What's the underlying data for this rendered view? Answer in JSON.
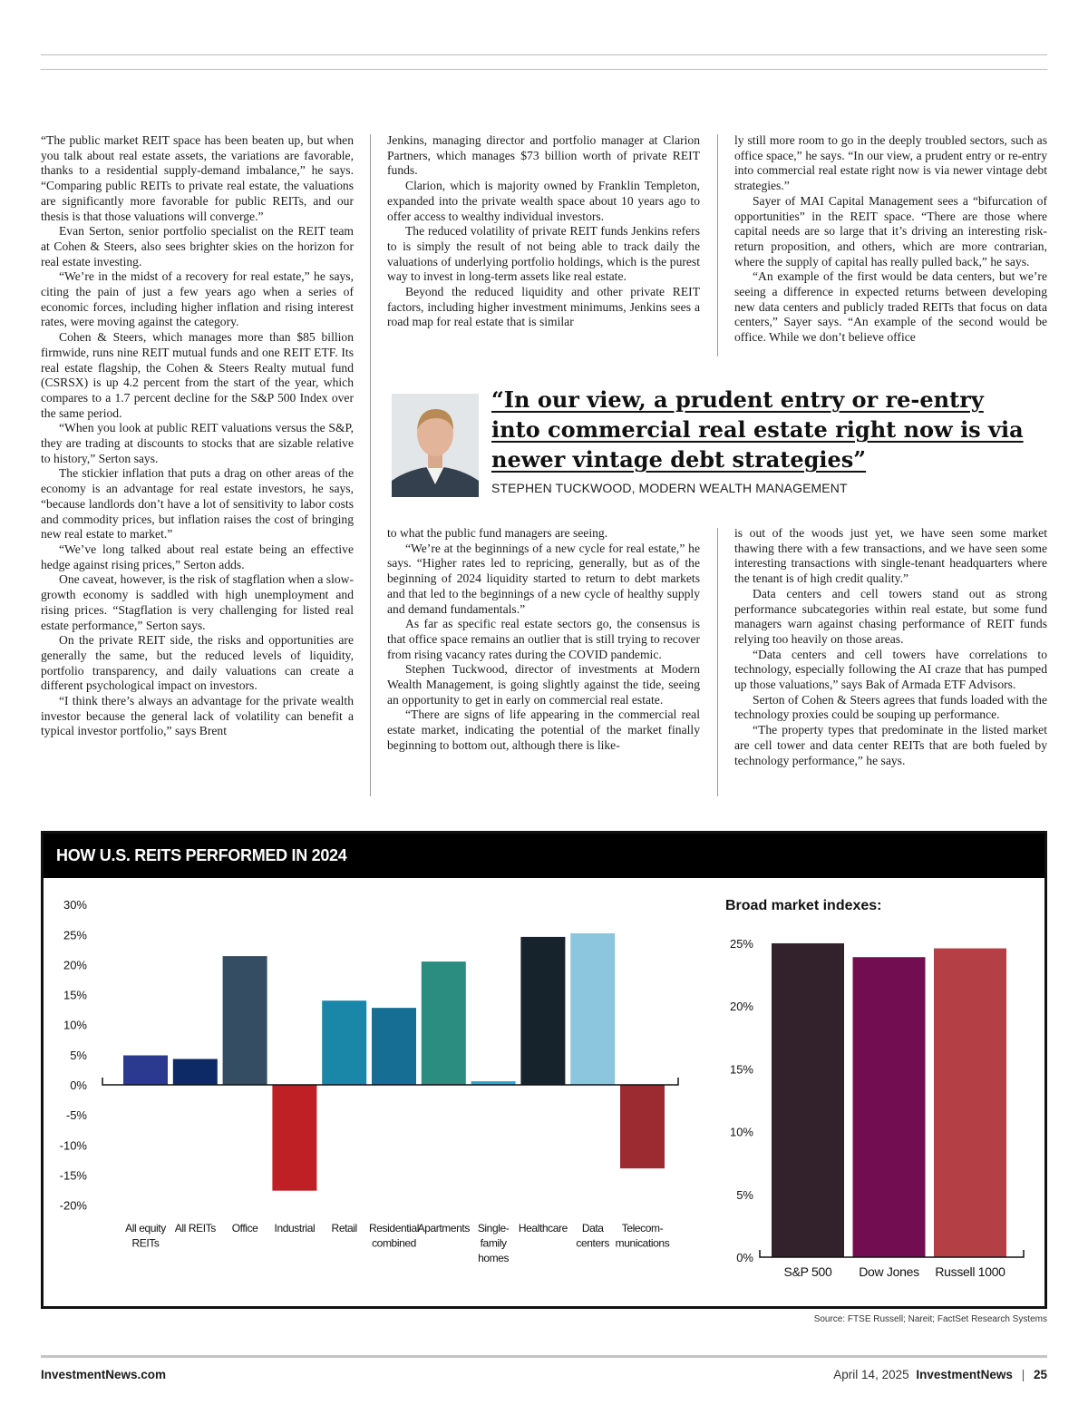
{
  "article": {
    "col1": [
      {
        "cont": true,
        "text": "“The public market REIT space has been beaten up, but when you talk about real estate assets, the variations are favorable, thanks to a residential supply-demand imbalance,” he says. “Comparing public REITs to private real estate, the valuations are significantly more favorable for public REITs, and our thesis is that those valuations will converge.”"
      },
      {
        "text": "Evan Serton, senior portfolio specialist on the REIT team at Cohen & Steers, also sees brighter skies on the horizon for real estate investing."
      },
      {
        "text": "“We’re in the midst of a recovery for real estate,” he says, citing the pain of just a few years ago when a series of economic forces, including higher inflation and rising interest rates, were moving against the category."
      },
      {
        "text": "Cohen & Steers, which manages more than $85 billion firmwide, runs nine REIT mutual funds and one REIT ETF. Its real estate flagship, the Cohen & Steers Realty mutual fund (CSRSX) is up 4.2 percent from the start of the year, which compares to a 1.7 percent decline for the S&P 500 Index over the same period."
      },
      {
        "text": "“When you look at public REIT valuations versus the S&P, they are trading at discounts to stocks that are sizable relative to history,” Serton says."
      },
      {
        "text": "The stickier inflation that puts a drag on other areas of the economy is an advantage for real estate investors, he says, “because landlords don’t have a lot of sensitivity to labor costs and commodity prices, but inflation raises the cost of bringing new real estate to market.”"
      },
      {
        "text": "“We’ve long talked about real estate being an effective hedge against rising prices,” Serton adds."
      },
      {
        "text": "One caveat, however, is the risk of stagflation when a slow-growth economy is saddled with high unemployment and rising prices. “Stagflation is very challenging for listed real estate performance,” Serton says."
      },
      {
        "text": "On the private REIT side, the risks and opportunities are generally the same, but the reduced levels of liquidity, portfolio transparency, and daily valuations can create a different psychological impact on investors."
      },
      {
        "text": "“I think there’s always an advantage for the private wealth investor because the general lack of volatility can benefit a typical investor portfolio,” says Brent"
      }
    ],
    "col2_top": [
      {
        "cont": true,
        "text": "Jenkins, managing director and portfolio manager at Clarion Partners, which manages $73 billion worth of private REIT funds."
      },
      {
        "text": "Clarion, which is majority owned by Franklin Templeton, expanded into the private wealth space about 10 years ago to offer access to wealthy individual investors."
      },
      {
        "text": "The reduced volatility of private REIT funds Jenkins refers to is simply the result of not being able to track daily the valuations of underlying portfolio holdings, which is the purest way to invest in long-term assets like real estate."
      },
      {
        "text": "Beyond the reduced liquidity and other private REIT factors, including higher investment minimums, Jenkins sees a road map for real estate that is similar"
      }
    ],
    "col3_top": [
      {
        "cont": true,
        "text": "ly still more room to go in the deeply troubled sectors, such as office space,” he says. “In our view, a prudent entry or re-entry into commercial real estate right now is via newer vintage debt strategies.”"
      },
      {
        "text": "Sayer of MAI Capital Management sees a “bifurcation of opportunities” in the REIT space. “There are those where capital needs are so large that it’s driving an interesting risk-return proposition, and others, which are more contrarian, where the supply of capital has really pulled back,” he says."
      },
      {
        "text": "“An example of the first would be data centers, but we’re seeing a difference in expected returns between developing new data centers and publicly traded REITs that focus on data centers,” Sayer says. “An example of the second would be office. While we don’t believe office"
      }
    ],
    "col2_bottom": [
      {
        "cont": true,
        "text": "to what the public fund managers are seeing."
      },
      {
        "text": "“We’re at the beginnings of a new cycle for real estate,” he says. “Higher rates led to repricing, generally, but as of the beginning of 2024 liquidity started to return to debt markets and that led to the beginnings of a new cycle of healthy supply and demand fundamentals.”"
      },
      {
        "text": "As far as specific real estate sectors go, the consensus is that office space remains an outlier that is still trying to recover from rising vacancy rates during the COVID pandemic."
      },
      {
        "text": "Stephen Tuckwood, director of investments at Modern Wealth Management, is going slightly against the tide, seeing an opportunity to get in early on commercial real estate."
      },
      {
        "text": "“There are signs of life appearing in the commercial real estate market, indicating the potential of the market finally beginning to bottom out, although there is like-"
      }
    ],
    "col3_bottom": [
      {
        "cont": true,
        "text": "is out of the woods just yet, we have seen some market thawing there with a few transactions, and we have seen some interesting transactions with single-tenant headquarters where the tenant is of high credit quality.”"
      },
      {
        "text": "Data centers and cell towers stand out as strong performance subcategories within real estate, but some fund managers warn against chasing performance of REIT funds relying too heavily on those areas."
      },
      {
        "text": "“Data centers and cell towers have correlations to technology, especially following the AI craze that has pumped up those valuations,” says Bak of Armada ETF Advisors."
      },
      {
        "text": "Serton of Cohen & Steers agrees that funds loaded with the technology proxies could be souping up performance."
      },
      {
        "text": "“The property types that predominate in the listed market are cell tower and data center REITs that are both fueled by technology performance,” he says."
      }
    ]
  },
  "pull_quote": {
    "text": "“In our view, a prudent entry or re-entry into commercial real estate right now is via newer vintage debt strategies”",
    "attribution": "STEPHEN TUCKWOOD, MODERN WEALTH MANAGEMENT"
  },
  "chart_title": "HOW U.S. REITS PERFORMED IN 2024",
  "chart_data": [
    {
      "type": "bar",
      "title": "",
      "categories": [
        "All equity REITs",
        "All REITs",
        "Office",
        "Industrial",
        "Retail",
        "Residential combined",
        "Apartments",
        "Single-family homes",
        "Healthcare",
        "Data centers",
        "Telecommunications"
      ],
      "category_lines": [
        [
          "All equity",
          "REITs"
        ],
        [
          "All REITs"
        ],
        [
          "Office"
        ],
        [
          "Industrial"
        ],
        [
          "Retail"
        ],
        [
          "Residential",
          "combined"
        ],
        [
          "Apartments"
        ],
        [
          "Single-",
          "family",
          "homes"
        ],
        [
          "Healthcare"
        ],
        [
          "Data",
          "centers"
        ],
        [
          "Telecom-",
          "munications"
        ]
      ],
      "values": [
        4.9,
        4.3,
        21.4,
        -17.6,
        14.0,
        12.8,
        20.5,
        0.6,
        24.6,
        25.2,
        -13.9
      ],
      "colors": [
        "#2b3a8f",
        "#0d2a66",
        "#344d62",
        "#bf2026",
        "#1a87a8",
        "#166e94",
        "#2b8c80",
        "#2aa7d9",
        "#17232c",
        "#8cc6de",
        "#9c2b31"
      ],
      "ylim": [
        -20,
        30
      ],
      "yticks": [
        "30%",
        "25%",
        "20%",
        "15%",
        "10%",
        "5%",
        "0%",
        "-5%",
        "-10%",
        "-15%",
        "-20%"
      ],
      "ytick_values": [
        30,
        25,
        20,
        15,
        10,
        5,
        0,
        -5,
        -10,
        -15,
        -20
      ],
      "grid": false
    },
    {
      "type": "bar",
      "title": "Broad market indexes:",
      "categories": [
        "S&P 500",
        "Dow Jones",
        "Russell 1000"
      ],
      "values": [
        25.0,
        23.9,
        24.6
      ],
      "colors": [
        "#33212c",
        "#730d52",
        "#b44045"
      ],
      "ylim": [
        0,
        25
      ],
      "yticks": [
        "25%",
        "20%",
        "15%",
        "10%",
        "5%",
        "0%"
      ],
      "ytick_values": [
        25,
        20,
        15,
        10,
        5,
        0
      ],
      "grid": false
    }
  ],
  "source": "Source: FTSE Russell; Nareit; FactSet Research Systems",
  "footer": {
    "left": "InvestmentNews.com",
    "date": "April 14, 2025",
    "brand": "InvestmentNews",
    "page": "25"
  }
}
